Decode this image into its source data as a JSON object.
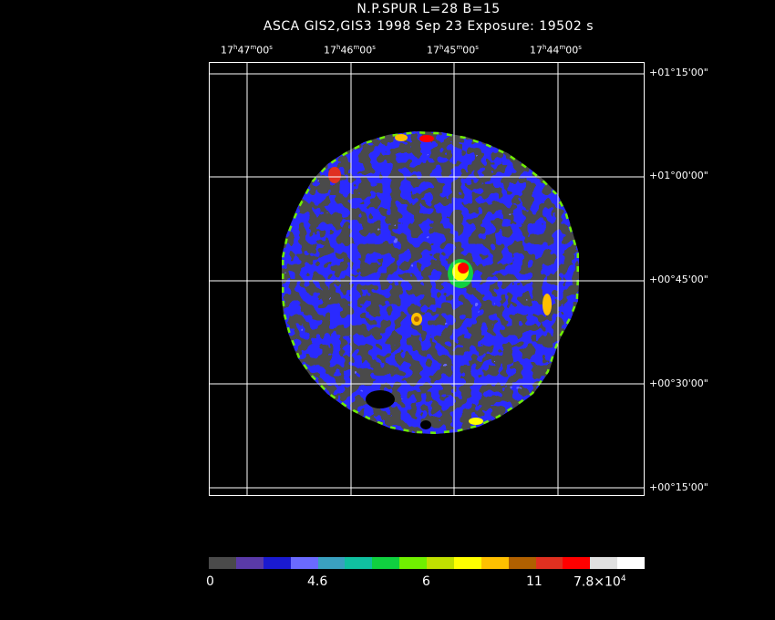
{
  "header": {
    "line1": "N.P.SPUR  L=28  B=15",
    "line2": "ASCA GIS2,GIS3    1998 Sep 23    Exposure: 19502 s"
  },
  "ra_ticks": [
    {
      "h": "17",
      "m": "47",
      "s": "00"
    },
    {
      "h": "17",
      "m": "46",
      "s": "00"
    },
    {
      "h": "17",
      "m": "45",
      "s": "00"
    },
    {
      "h": "17",
      "m": "44",
      "s": "00"
    }
  ],
  "dec_ticks": [
    "+01°15'00\"",
    "+01°00'00\"",
    "+00°45'00\"",
    "+00°30'00\"",
    "+00°15'00\""
  ],
  "colorbar": {
    "colors": [
      "#4a4a4a",
      "#5a3aa8",
      "#1a1ad0",
      "#6a6aff",
      "#3aa0c0",
      "#10c0a0",
      "#10d040",
      "#70f000",
      "#c0e000",
      "#ffff00",
      "#ffc000",
      "#b06000",
      "#e03020",
      "#ff0000",
      "#e0e0e0",
      "#ffffff"
    ],
    "labels": [
      "0",
      "4.6",
      "6",
      "11",
      "7.8×10"
    ],
    "last_exponent": "4"
  }
}
